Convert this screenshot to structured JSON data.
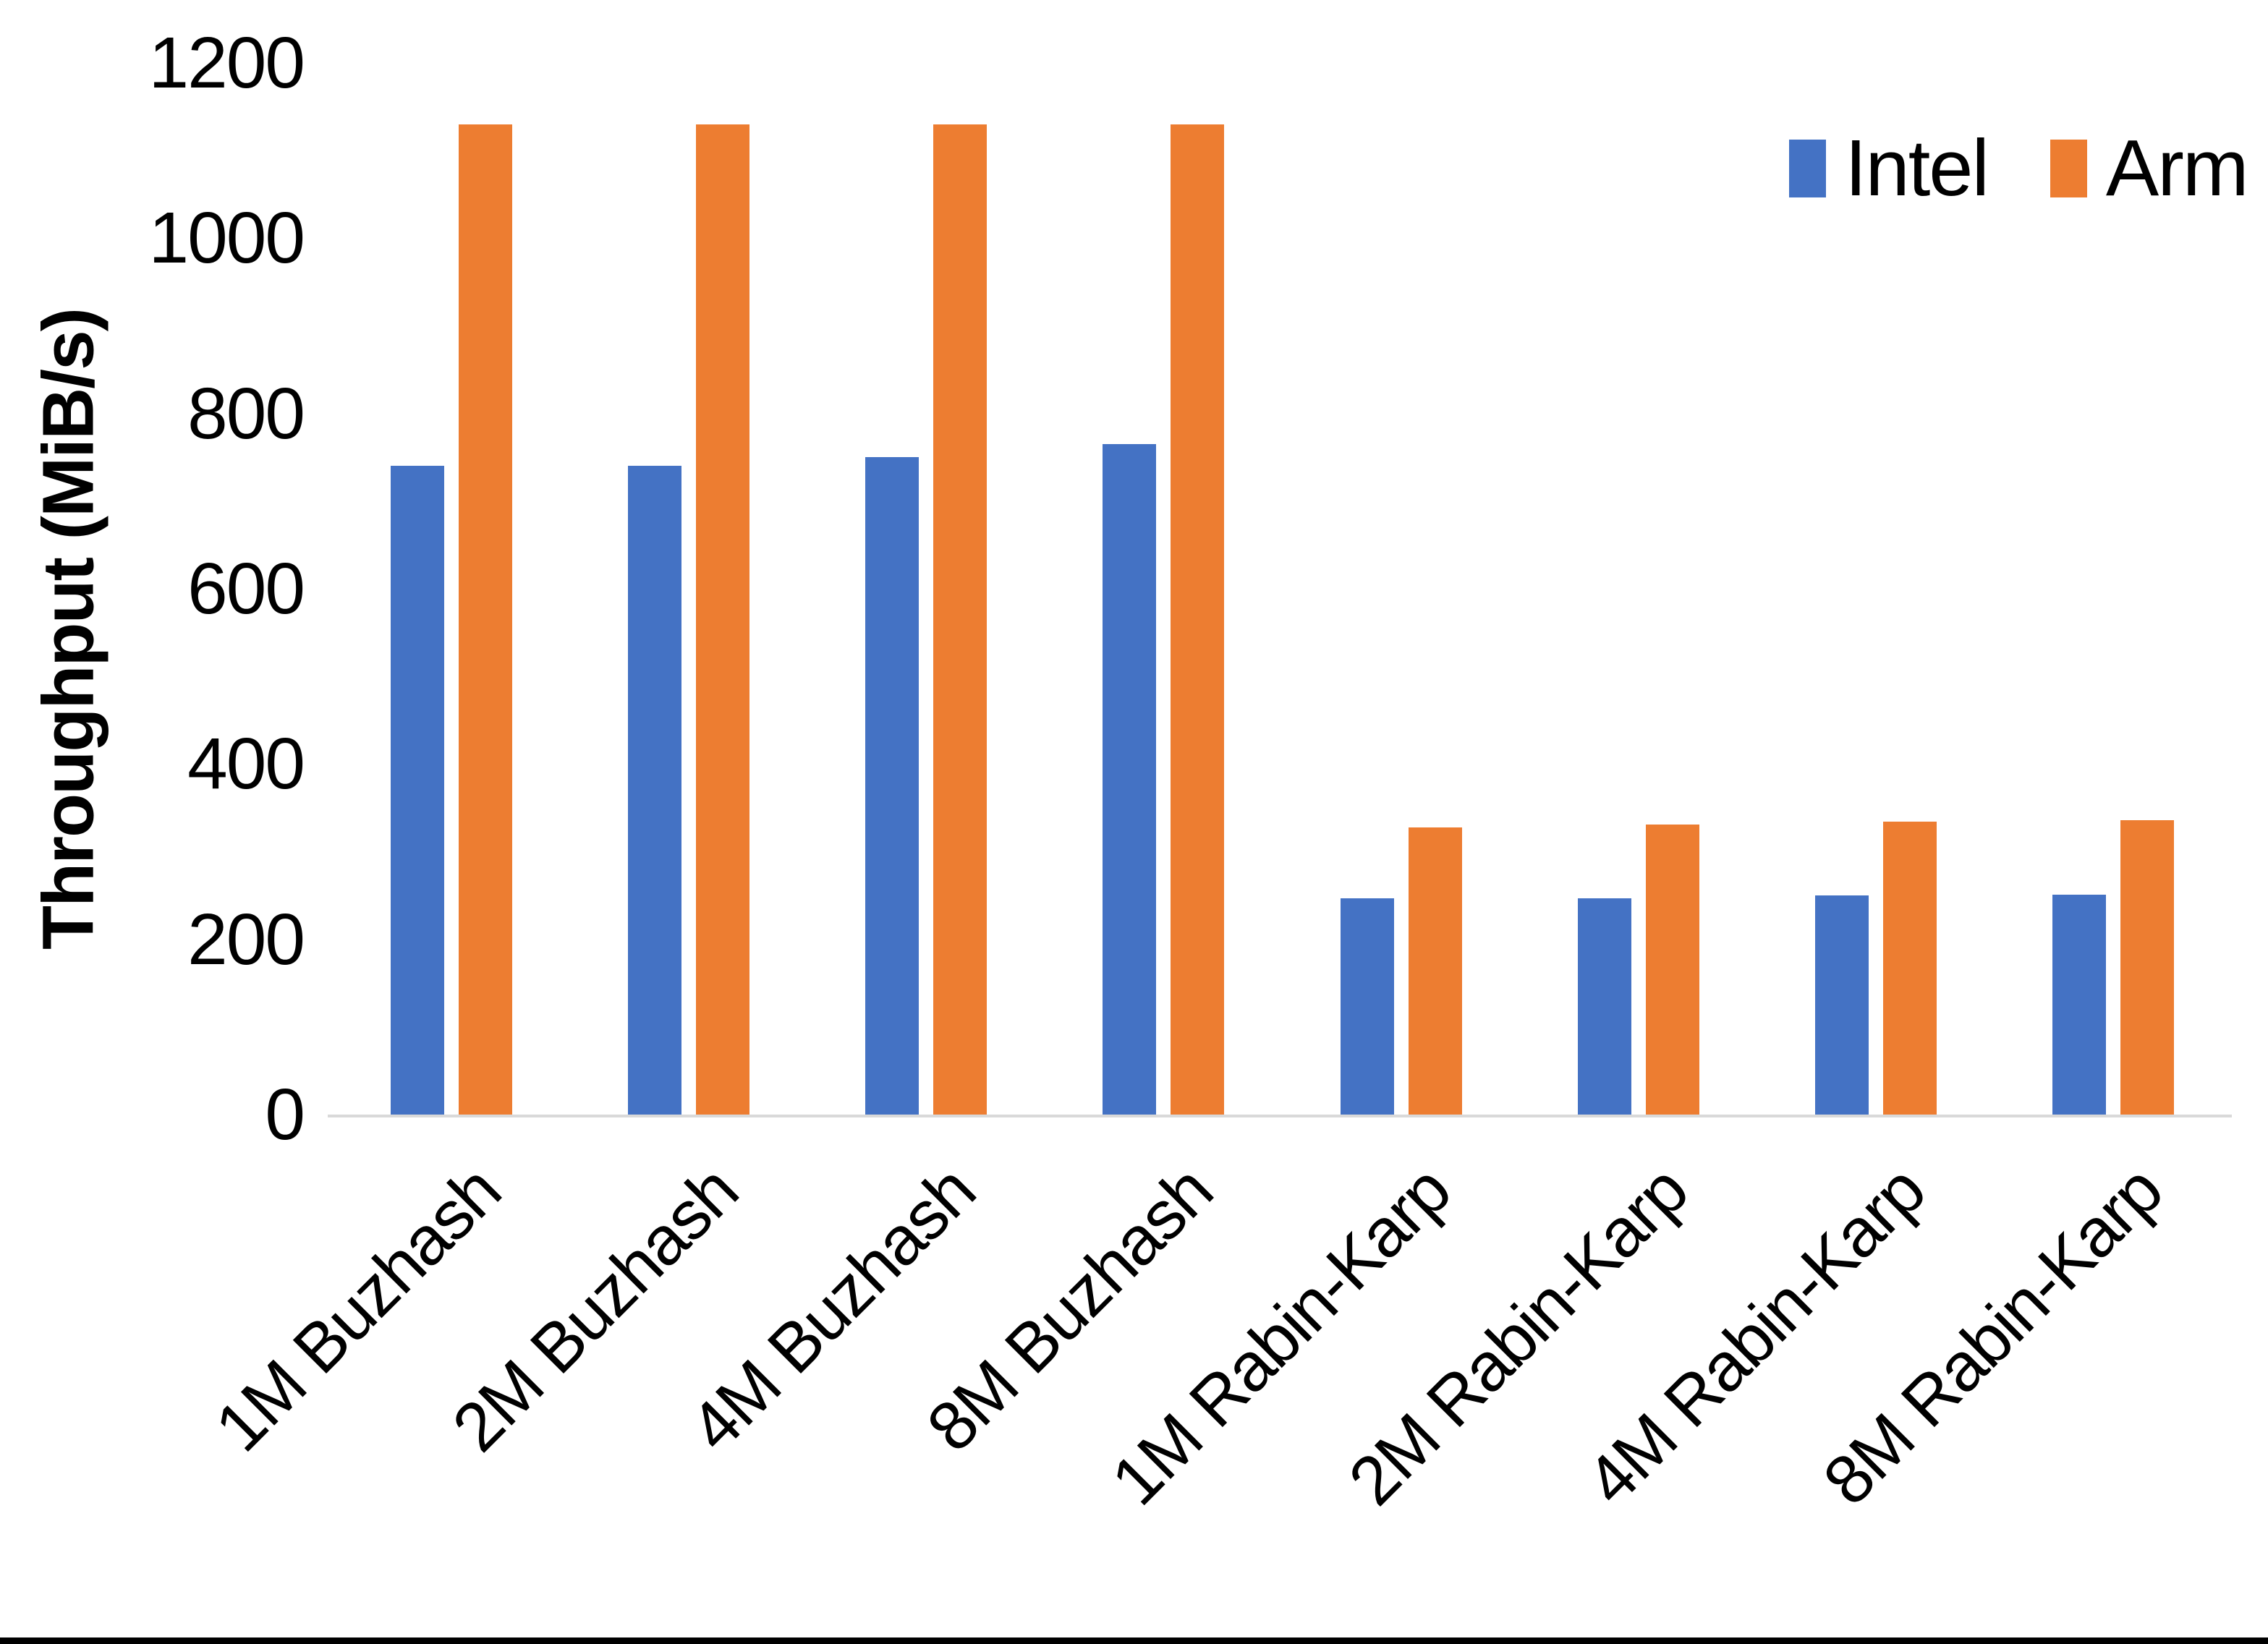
{
  "page": {
    "background": "#FFFFFF",
    "bottom_border_color": "#000000"
  },
  "chart_data": {
    "type": "bar",
    "title": "",
    "ylabel": "Throughput (MiB/s)",
    "xlabel": "",
    "ylim": [
      0,
      1200
    ],
    "yticks": [
      0,
      200,
      400,
      600,
      800,
      1000,
      1200
    ],
    "grid": false,
    "legend_position": "top-right",
    "axis_line_color": "#D9D9D9",
    "text_color": "#000000",
    "categories": [
      "1M Buzhash",
      "2M Buzhash",
      "4M Buzhash",
      "8M Buzhash",
      "1M Rabin-Karp",
      "2M Rabin-Karp",
      "4M Rabin-Karp",
      "8M Rabin-Karp"
    ],
    "series": [
      {
        "name": "Intel",
        "color": "#4472C4",
        "values": [
          740,
          740,
          750,
          765,
          247,
          247,
          250,
          251
        ]
      },
      {
        "name": "Arm",
        "color": "#ED7D31",
        "values": [
          1130,
          1130,
          1130,
          1130,
          328,
          331,
          334,
          336
        ]
      }
    ]
  },
  "legend": {
    "items": [
      {
        "label": "Intel",
        "color": "#4472C4"
      },
      {
        "label": "Arm",
        "color": "#ED7D31"
      }
    ]
  }
}
